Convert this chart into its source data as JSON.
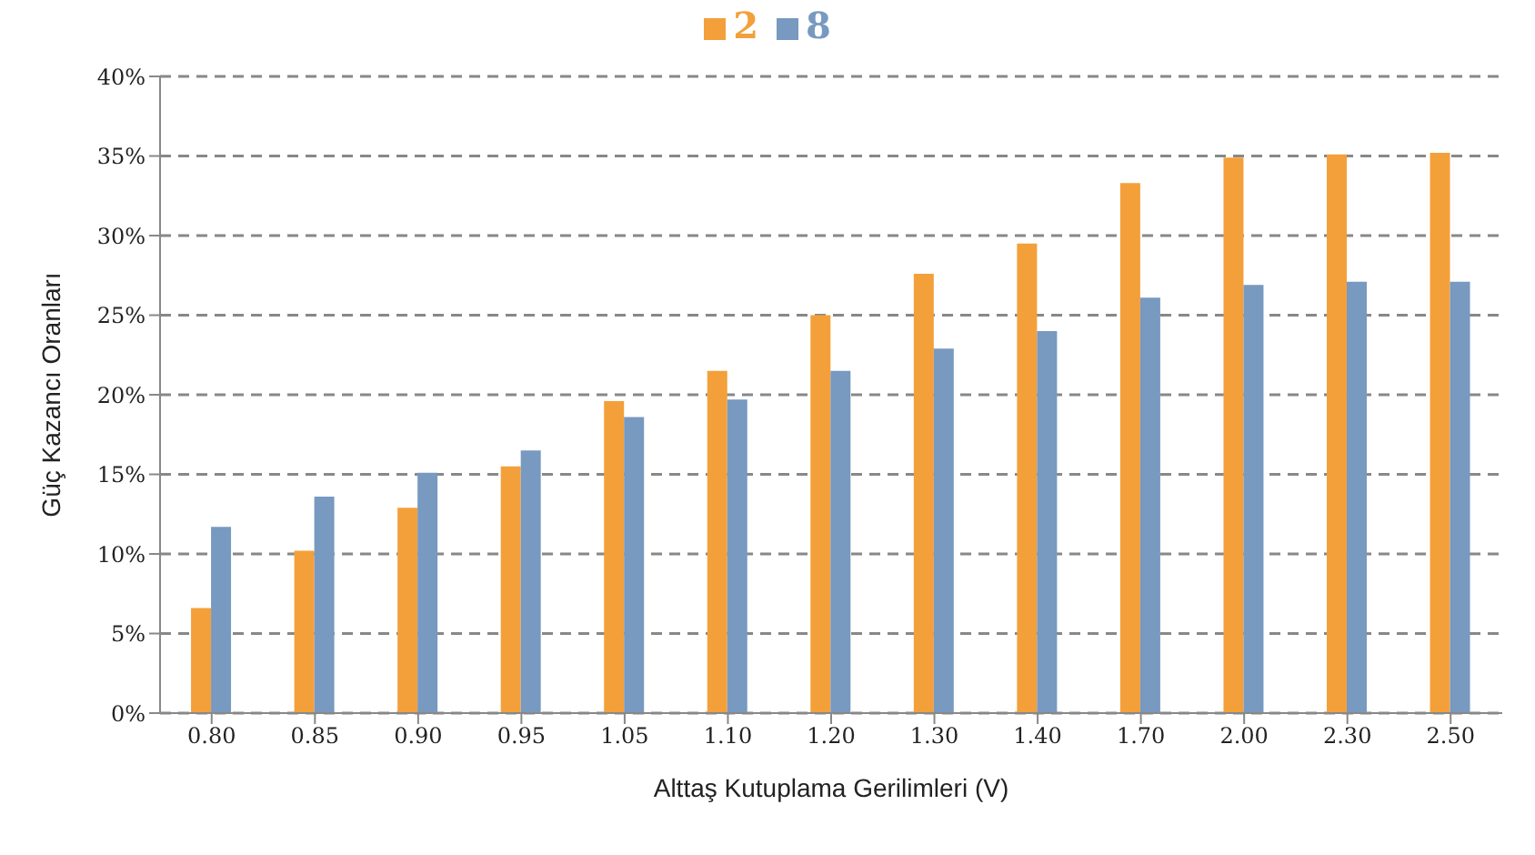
{
  "chart_data": {
    "type": "bar",
    "xlabel": "Alttaş Kutuplama Gerilimleri (V)",
    "ylabel": "Güç Kazancı Oranları",
    "categories": [
      "0.80",
      "0.85",
      "0.90",
      "0.95",
      "1.05",
      "1.10",
      "1.20",
      "1.30",
      "1.40",
      "1.70",
      "2.00",
      "2.30",
      "2.50"
    ],
    "series": [
      {
        "name": "2",
        "color": "#f3a03a",
        "values": [
          6.6,
          10.2,
          12.9,
          15.5,
          19.6,
          21.5,
          25.0,
          27.6,
          29.5,
          33.3,
          34.9,
          35.1,
          35.2
        ]
      },
      {
        "name": "8",
        "color": "#7899c0",
        "values": [
          11.7,
          13.6,
          15.1,
          16.5,
          18.6,
          19.7,
          21.5,
          22.9,
          24.0,
          26.1,
          26.9,
          27.1,
          27.1
        ]
      }
    ],
    "ylim": [
      0,
      40
    ],
    "yticks": [
      {
        "value": 0,
        "label": "0%"
      },
      {
        "value": 5,
        "label": "5%"
      },
      {
        "value": 10,
        "label": "10%"
      },
      {
        "value": 15,
        "label": "15%"
      },
      {
        "value": 20,
        "label": "20%"
      },
      {
        "value": 25,
        "label": "25%"
      },
      {
        "value": 30,
        "label": "30%"
      },
      {
        "value": 35,
        "label": "35%"
      },
      {
        "value": 40,
        "label": "40%"
      }
    ],
    "grid": "y",
    "legend": "top"
  }
}
